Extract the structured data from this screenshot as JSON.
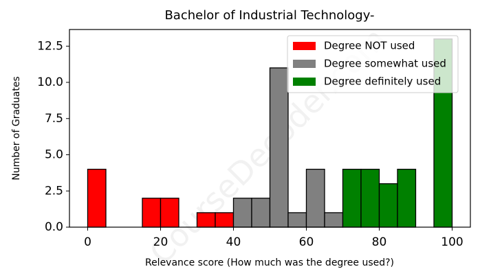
{
  "chart_data": {
    "type": "histogram",
    "title": "Bachelor of Industrial Technology-",
    "xlabel": "Relevance score (How much was the degree used?)",
    "ylabel": "Number of Graduates",
    "watermark": "CourseDecoder.com",
    "bins": [
      0,
      5,
      10,
      15,
      20,
      25,
      30,
      35,
      40,
      45,
      50,
      55,
      60,
      65,
      70,
      75,
      80,
      85,
      90,
      95,
      100
    ],
    "series": [
      {
        "name": "Degree NOT used",
        "color": "#ff0000",
        "values": [
          4,
          0,
          0,
          2,
          2,
          0,
          1,
          1,
          0,
          0,
          0,
          0,
          0,
          0,
          0,
          0,
          0,
          0,
          0,
          0
        ]
      },
      {
        "name": "Degree somewhat used",
        "color": "#808080",
        "values": [
          0,
          0,
          0,
          0,
          0,
          0,
          0,
          0,
          2,
          2,
          11,
          1,
          4,
          1,
          0,
          0,
          0,
          0,
          0,
          0
        ]
      },
      {
        "name": "Degree definitely used",
        "color": "#008000",
        "values": [
          0,
          0,
          0,
          0,
          0,
          0,
          0,
          0,
          0,
          0,
          0,
          0,
          0,
          0,
          4,
          4,
          3,
          4,
          0,
          13
        ]
      }
    ],
    "xlim": [
      -5,
      105
    ],
    "xticks": [
      0,
      20,
      40,
      60,
      80,
      100
    ],
    "ylim": [
      0,
      13.65
    ],
    "yticks": [
      {
        "value": 0,
        "label": "0.0"
      },
      2.5,
      {
        "value": 5,
        "label": "5.0"
      },
      7.5,
      {
        "value": 10,
        "label": "10.0"
      },
      12.5
    ],
    "legend": "upper right"
  }
}
